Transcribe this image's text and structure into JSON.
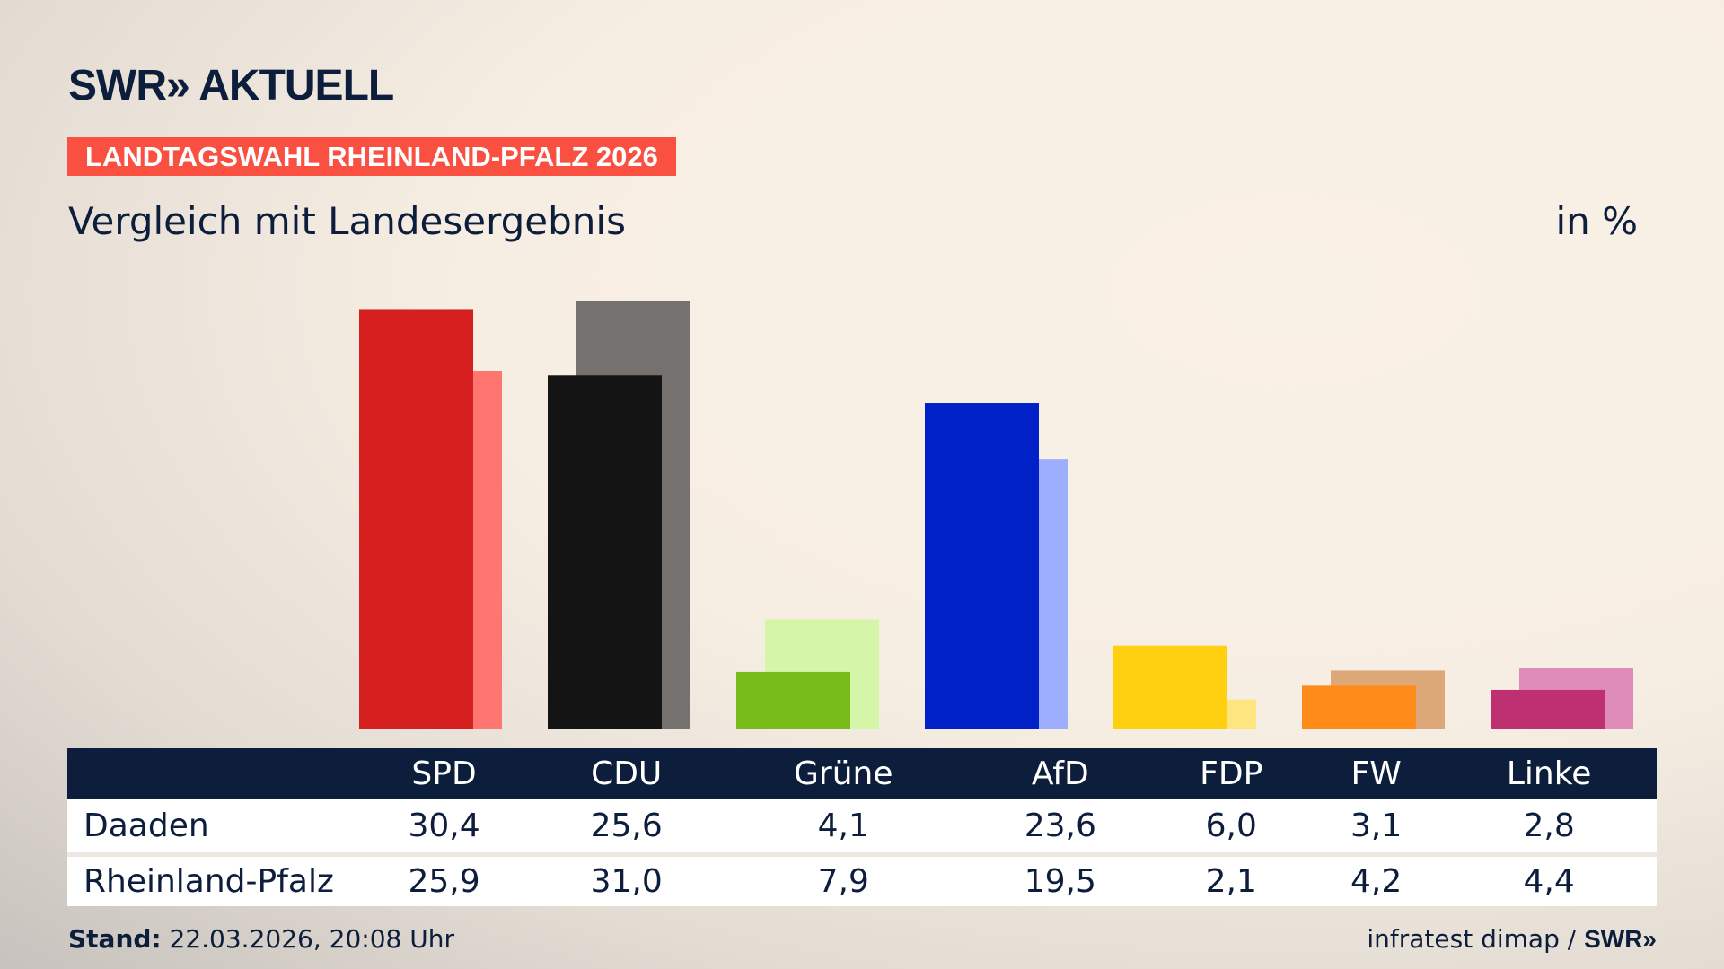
{
  "header": {
    "logo": "SWR» AKTUELL",
    "banner": "LANDTAGSWAHL RHEINLAND-PFALZ 2026",
    "subtitle": "Vergleich mit Landesergebnis",
    "unit": "in %"
  },
  "chart_data": {
    "type": "bar",
    "categories": [
      "SPD",
      "CDU",
      "Grüne",
      "AfD",
      "FDP",
      "FW",
      "Linke"
    ],
    "series": [
      {
        "name": "Daaden",
        "values": [
          30.4,
          25.6,
          4.1,
          23.6,
          6.0,
          3.1,
          2.8
        ],
        "display": [
          "30,4",
          "25,6",
          "4,1",
          "23,6",
          "6,0",
          "3,1",
          "2,8"
        ]
      },
      {
        "name": "Rheinland-Pfalz",
        "values": [
          25.9,
          31.0,
          7.9,
          19.5,
          2.1,
          4.2,
          4.4
        ],
        "display": [
          "25,9",
          "31,0",
          "7,9",
          "19,5",
          "2,1",
          "4,2",
          "4,4"
        ]
      }
    ],
    "colors": [
      "#d61f1f",
      "#141414",
      "#78bc1b",
      "#0020c8",
      "#ffd010",
      "#ff8c1a",
      "#bf3072"
    ],
    "light_colors": [
      "#ff7670",
      "#75716e",
      "#d5f5a8",
      "#9eaeff",
      "#ffe580",
      "#dca878",
      "#df8cbb"
    ],
    "ylim": [
      0,
      31
    ]
  },
  "footer": {
    "stand_label": "Stand:",
    "stand_value": " 22.03.2026, 20:08 Uhr",
    "source": "infratest dimap / ",
    "source_logo": "SWR»"
  }
}
